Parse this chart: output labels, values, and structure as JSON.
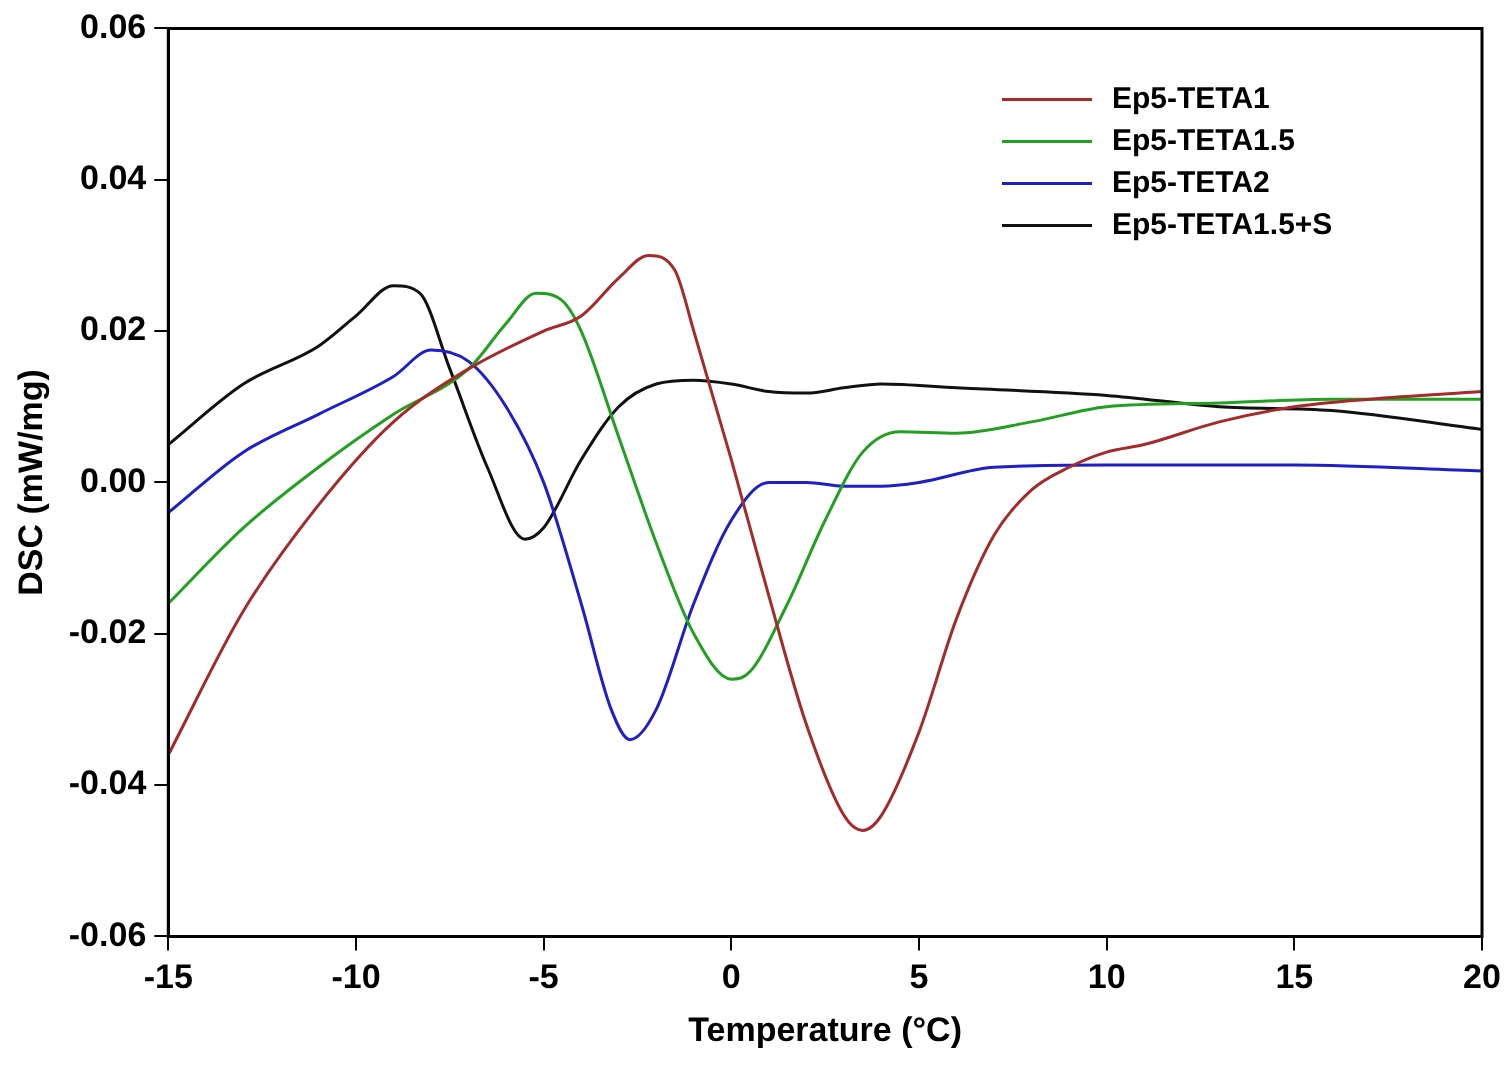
{
  "chart_data": {
    "type": "line",
    "xlabel": "Temperature (°C)",
    "ylabel": "DSC (mW/mg)",
    "xlim": [
      -15,
      20
    ],
    "xticks": [
      -15,
      -10,
      -5,
      0,
      5,
      10,
      15,
      20
    ],
    "ylim": [
      -0.06,
      0.06
    ],
    "yticks": [
      -0.06,
      -0.04,
      -0.02,
      {
        "value": 0,
        "label": "0.00"
      },
      0.02,
      0.04,
      0.06
    ],
    "grid": false,
    "legend": "top right",
    "marker": "none",
    "line_style": "solid",
    "series": [
      {
        "name": "Ep5-TETA1",
        "color": "#a52a2a",
        "x": [
          -15,
          -13,
          -11,
          -9,
          -7,
          -5,
          -4,
          -3,
          -2.2,
          -1.5,
          -1,
          0,
          1,
          2,
          3,
          3.5,
          4,
          5,
          6,
          7,
          8,
          9,
          10,
          11,
          13,
          15,
          17,
          20
        ],
        "values": [
          -0.036,
          -0.017,
          -0.003,
          0.008,
          0.015,
          0.02,
          0.022,
          0.027,
          0.03,
          0.028,
          0.02,
          0.003,
          -0.015,
          -0.032,
          -0.044,
          -0.046,
          -0.044,
          -0.033,
          -0.018,
          -0.007,
          -0.001,
          0.002,
          0.004,
          0.005,
          0.008,
          0.01,
          0.011,
          0.012
        ]
      },
      {
        "name": "Ep5-TETA1.5",
        "color": "#22a022",
        "x": [
          -15,
          -13,
          -11,
          -9,
          -7,
          -6,
          -5.2,
          -4.5,
          -4,
          -3,
          -2,
          -1,
          0,
          0.5,
          1.5,
          2.5,
          3.5,
          4.5,
          6,
          8,
          10,
          13,
          16,
          20
        ],
        "values": [
          -0.016,
          -0.006,
          0.002,
          0.009,
          0.015,
          0.021,
          0.025,
          0.024,
          0.02,
          0.006,
          -0.008,
          -0.02,
          -0.026,
          -0.025,
          -0.016,
          -0.005,
          0.004,
          0.0067,
          0.0065,
          0.008,
          0.01,
          0.0105,
          0.011,
          0.011
        ]
      },
      {
        "name": "Ep5-TETA2",
        "color": "#1f1fc8",
        "x": [
          -15,
          -13,
          -11,
          -9,
          -8,
          -7,
          -6,
          -5,
          -4,
          -3.2,
          -2.7,
          -2,
          -1,
          0,
          1,
          2,
          3,
          4,
          5,
          7,
          10,
          15,
          20
        ],
        "values": [
          -0.004,
          0.004,
          0.009,
          0.014,
          0.0175,
          0.016,
          0.01,
          0.0,
          -0.016,
          -0.03,
          -0.034,
          -0.03,
          -0.016,
          -0.005,
          0.0,
          0.0,
          -0.0005,
          -0.0005,
          0.0,
          0.002,
          0.0023,
          0.0023,
          0.0015
        ]
      },
      {
        "name": "Ep5-TETA1.5+S",
        "color": "#111111",
        "x": [
          -15,
          -13,
          -11,
          -10,
          -9,
          -8.3,
          -7.5,
          -6.5,
          -5.5,
          -5,
          -4,
          -3,
          -2,
          -1,
          0,
          1,
          2,
          3,
          4,
          6,
          10,
          13,
          16,
          20
        ],
        "values": [
          0.005,
          0.013,
          0.018,
          0.022,
          0.026,
          0.025,
          0.015,
          0.002,
          -0.0075,
          -0.006,
          0.003,
          0.01,
          0.013,
          0.0135,
          0.013,
          0.012,
          0.0118,
          0.0125,
          0.013,
          0.0125,
          0.0115,
          0.01,
          0.0095,
          0.007
        ]
      }
    ]
  }
}
